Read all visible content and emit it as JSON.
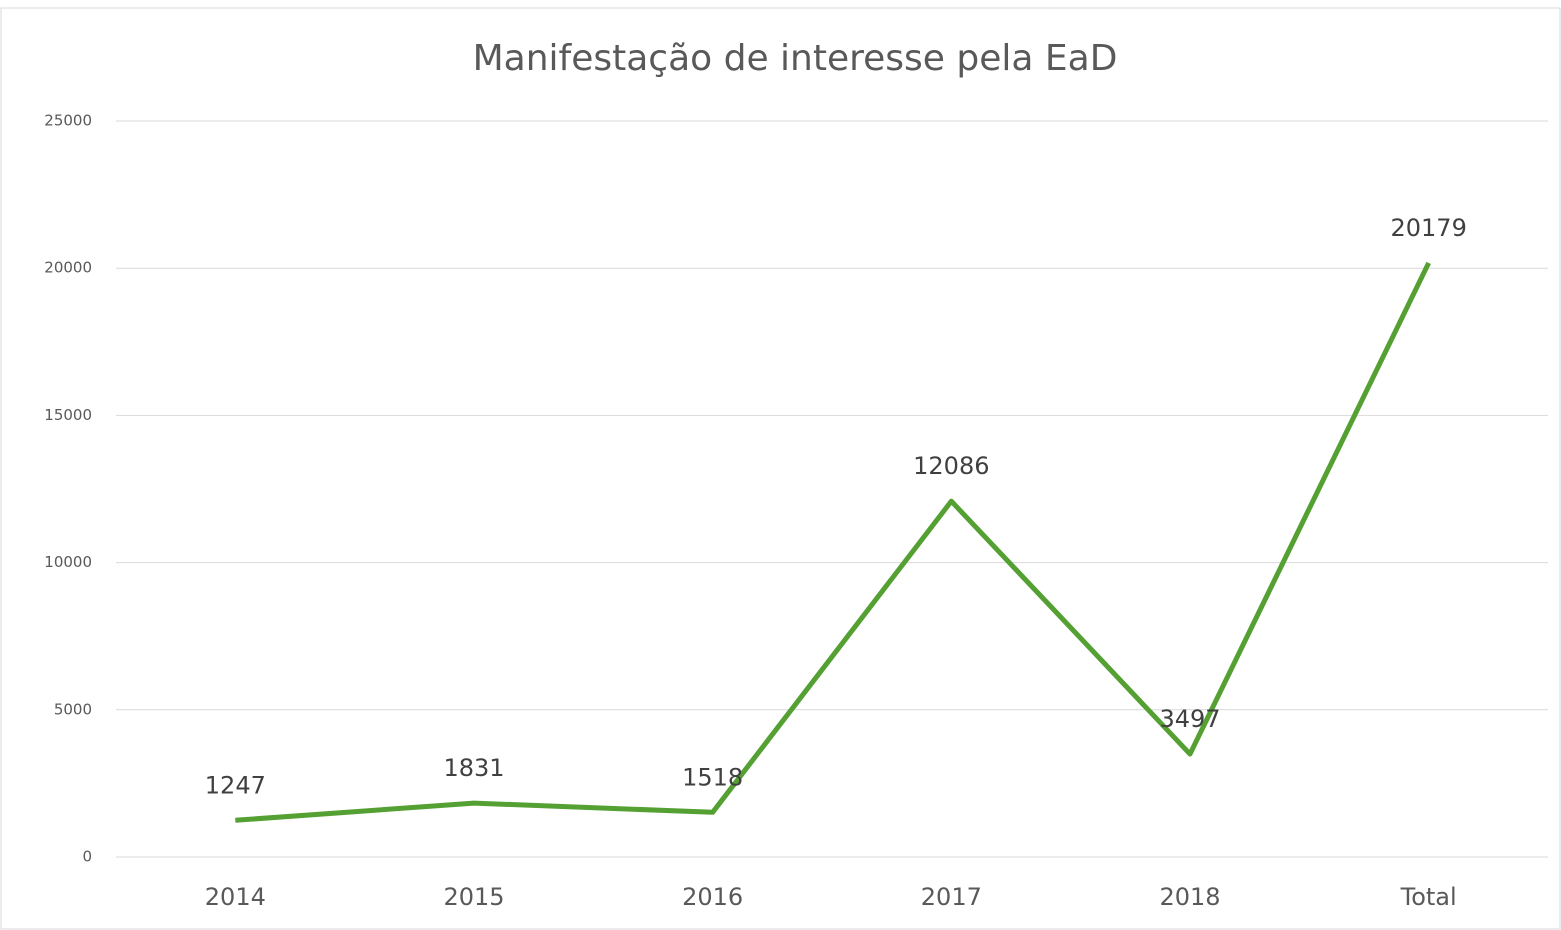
{
  "chart_data": {
    "type": "line",
    "title": "Manifestação de interesse pela EaD",
    "categories": [
      "2014",
      "2015",
      "2016",
      "2017",
      "2018",
      "Total"
    ],
    "values": [
      1247,
      1831,
      1518,
      12086,
      3497,
      20179
    ],
    "color": "#54a032",
    "ylim": [
      0,
      25000
    ],
    "yticks": [
      0,
      5000,
      10000,
      15000,
      20000,
      25000
    ],
    "grid": true
  }
}
